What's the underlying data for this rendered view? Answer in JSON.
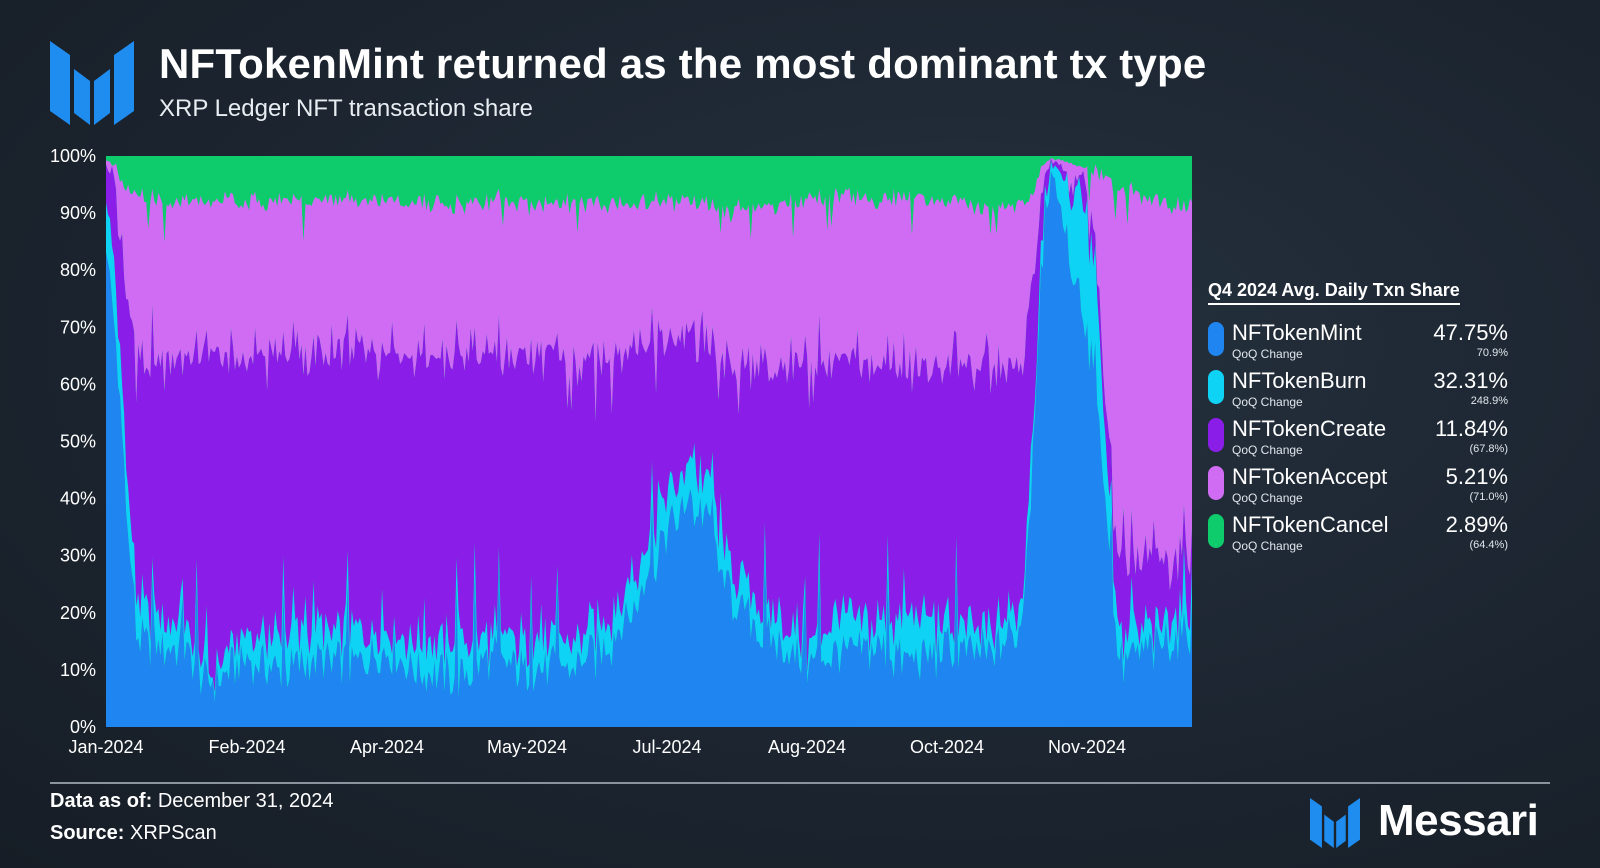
{
  "header": {
    "title": "NFTokenMint returned as the most dominant tx type",
    "subtitle": "XRP Ledger NFT transaction share"
  },
  "legend": {
    "title": "Q4 2024 Avg. Daily Txn Share",
    "items": [
      {
        "name": "NFTokenMint",
        "value": "47.75%",
        "sub": "QoQ Change",
        "change": "70.9%",
        "color": "#1f85f0"
      },
      {
        "name": "NFTokenBurn",
        "value": "32.31%",
        "sub": "QoQ Change",
        "change": "248.9%",
        "color": "#0fd3f5"
      },
      {
        "name": "NFTokenCreate",
        "value": "11.84%",
        "sub": "QoQ Change",
        "change": "(67.8%)",
        "color": "#8a1ee8"
      },
      {
        "name": "NFTokenAccept",
        "value": "5.21%",
        "sub": "QoQ Change",
        "change": "(71.0%)",
        "color": "#d06cf4"
      },
      {
        "name": "NFTokenCancel",
        "value": "2.89%",
        "sub": "QoQ Change",
        "change": "(64.4%)",
        "color": "#0ecc6c"
      }
    ]
  },
  "footer": {
    "data_label": "Data as of:",
    "data_value": "December 31, 2024",
    "source_label": "Source:",
    "source_value": "XRPScan",
    "brand": "Messari"
  },
  "chart_data": {
    "type": "area",
    "stacked": true,
    "normalized": true,
    "title": "NFTokenMint returned as the most dominant tx type",
    "subtitle": "XRP Ledger NFT transaction share",
    "y_ticks": [
      "0%",
      "10%",
      "20%",
      "30%",
      "40%",
      "50%",
      "60%",
      "70%",
      "80%",
      "90%",
      "100%"
    ],
    "ylim": [
      0,
      100
    ],
    "x_ticks": [
      "Jan-2024",
      "Feb-2024",
      "Apr-2024",
      "May-2024",
      "Jul-2024",
      "Aug-2024",
      "Oct-2024",
      "Nov-2024"
    ],
    "grid": false,
    "legend_position": "right",
    "x": [
      "Jan-2024",
      "Jan-2024",
      "Jan-2024",
      "Feb-2024",
      "Feb-2024",
      "Feb-2024",
      "Mar-2024",
      "Mar-2024",
      "Apr-2024",
      "Apr-2024",
      "Apr-2024",
      "May-2024",
      "May-2024",
      "May-2024",
      "Jun-2024",
      "Jun-2024",
      "Jul-2024",
      "Jul-2024",
      "Jul-2024",
      "Aug-2024",
      "Aug-2024",
      "Aug-2024",
      "Sep-2024",
      "Sep-2024",
      "Oct-2024",
      "Oct-2024",
      "Oct-2024",
      "Nov-2024",
      "Nov-2024",
      "Nov-2024",
      "Dec-2024",
      "Dec-2024"
    ],
    "series": [
      {
        "name": "NFTokenMint",
        "color": "#1f85f0",
        "values": [
          80,
          15,
          14,
          8,
          12,
          10,
          12,
          11,
          14,
          10,
          9,
          12,
          10,
          11,
          13,
          20,
          35,
          40,
          22,
          15,
          12,
          13,
          14,
          12,
          14,
          13,
          16,
          95,
          70,
          12,
          14,
          18
        ]
      },
      {
        "name": "NFTokenBurn",
        "color": "#0fd3f5",
        "values": [
          10,
          6,
          5,
          2,
          4,
          6,
          5,
          6,
          4,
          5,
          6,
          4,
          5,
          4,
          5,
          5,
          6,
          6,
          5,
          5,
          4,
          6,
          5,
          8,
          5,
          4,
          4,
          3,
          20,
          4,
          4,
          5
        ]
      },
      {
        "name": "NFTokenCreate",
        "color": "#8a1ee8",
        "values": [
          8,
          44,
          46,
          55,
          48,
          49,
          48,
          49,
          47,
          50,
          50,
          49,
          50,
          49,
          47,
          42,
          27,
          22,
          36,
          42,
          47,
          45,
          44,
          43,
          44,
          46,
          43,
          1,
          4,
          12,
          11,
          9
        ]
      },
      {
        "name": "NFTokenAccept",
        "color": "#d06cf4",
        "values": [
          1,
          28,
          27,
          27,
          28,
          27,
          27,
          26,
          27,
          27,
          26,
          27,
          27,
          27,
          27,
          25,
          24,
          24,
          27,
          29,
          29,
          29,
          29,
          30,
          29,
          28,
          28,
          0.5,
          4,
          66,
          63,
          59
        ]
      },
      {
        "name": "NFTokenCancel",
        "color": "#0ecc6c",
        "values": [
          1,
          7,
          8,
          8,
          8,
          8,
          8,
          8,
          8,
          8,
          9,
          8,
          8,
          9,
          8,
          8,
          8,
          8,
          10,
          9,
          8,
          7,
          8,
          7,
          8,
          9,
          9,
          0.5,
          2,
          6,
          8,
          9
        ]
      }
    ]
  }
}
